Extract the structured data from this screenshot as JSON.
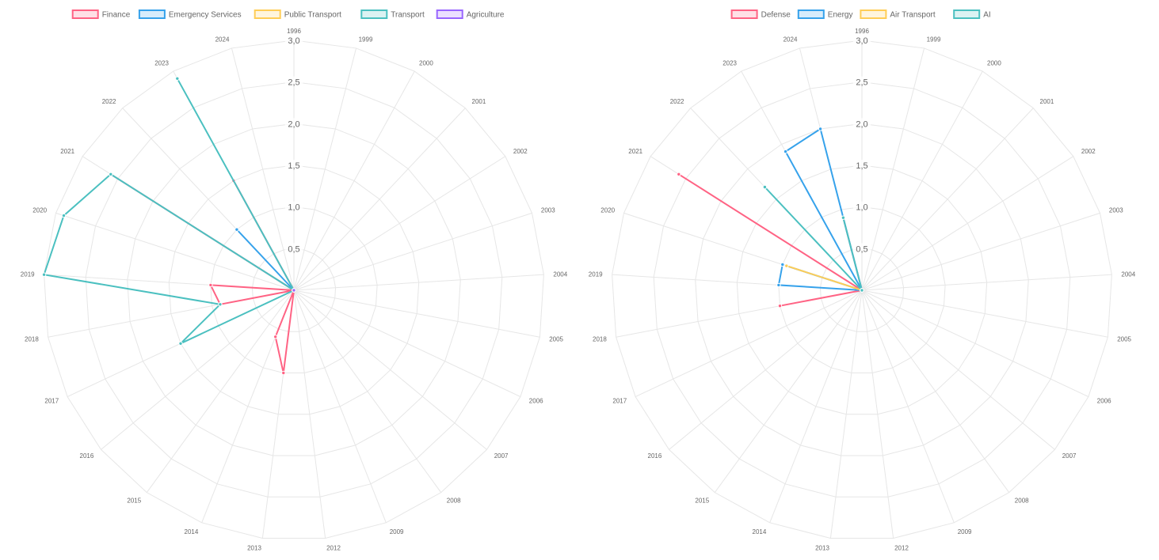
{
  "chart_data": [
    {
      "type": "radar",
      "categories": [
        "1996",
        "1999",
        "2000",
        "2001",
        "2002",
        "2003",
        "2004",
        "2005",
        "2006",
        "2007",
        "2008",
        "2009",
        "2012",
        "2013",
        "2014",
        "2015",
        "2016",
        "2017",
        "2018",
        "2019",
        "2020",
        "2021",
        "2022",
        "2023",
        "2024"
      ],
      "r_ticks": [
        "0,5",
        "1,0",
        "1,5",
        "2,0",
        "2,5",
        "3,0"
      ],
      "r_tick_values": [
        0.5,
        1.0,
        1.5,
        2.0,
        2.5,
        3.0
      ],
      "rlim": [
        0,
        3.0
      ],
      "legend_position": "top",
      "grid": true,
      "series": [
        {
          "name": "Finance",
          "color": "#ff6384",
          "fill": "rgba(255,99,132,0.2)",
          "values": [
            0,
            0,
            0,
            0,
            0,
            0,
            0,
            0,
            0,
            0,
            0,
            0,
            0,
            1.0,
            0.6,
            0,
            0,
            0,
            0.9,
            1.0,
            0,
            2.6,
            0,
            1.5,
            0
          ]
        },
        {
          "name": "Emergency Services",
          "color": "#36a2eb",
          "fill": "rgba(54,162,235,0.2)",
          "values": [
            0,
            0,
            0,
            0,
            0,
            0,
            0,
            0,
            0,
            0,
            0,
            0,
            0,
            0,
            0,
            0,
            0,
            0,
            0,
            0,
            0,
            0,
            1.0,
            0,
            0
          ]
        },
        {
          "name": "Public Transport",
          "color": "#ffcd56",
          "fill": "rgba(255,205,86,0.2)",
          "values": [
            0,
            0,
            0,
            0,
            0,
            0,
            0,
            0,
            0,
            0,
            0,
            0,
            0,
            0,
            0,
            0,
            0,
            0,
            0,
            0,
            0,
            0,
            0,
            0,
            0
          ]
        },
        {
          "name": "Transport",
          "color": "#4bc0c0",
          "fill": "rgba(75,192,192,0.2)",
          "values": [
            0,
            0,
            0,
            0,
            0,
            0,
            0,
            0,
            0,
            0,
            0,
            0,
            0,
            0,
            0,
            0,
            0,
            1.5,
            0.9,
            3.0,
            2.9,
            2.6,
            0,
            2.9,
            0
          ]
        },
        {
          "name": "Agriculture",
          "color": "#9966ff",
          "fill": "rgba(153,102,255,0.2)",
          "values": [
            0,
            0,
            0,
            0,
            0,
            0,
            0,
            0,
            0,
            0,
            0,
            0,
            0,
            0,
            0,
            0,
            0,
            0,
            0,
            0,
            0,
            0,
            0,
            0,
            0
          ]
        }
      ]
    },
    {
      "type": "radar",
      "categories": [
        "1996",
        "1999",
        "2000",
        "2001",
        "2002",
        "2003",
        "2004",
        "2005",
        "2006",
        "2007",
        "2008",
        "2009",
        "2012",
        "2013",
        "2014",
        "2015",
        "2016",
        "2017",
        "2018",
        "2019",
        "2020",
        "2021",
        "2022",
        "2023",
        "2024"
      ],
      "r_ticks": [
        "0,5",
        "1,0",
        "1,5",
        "2,0",
        "2,5",
        "3,0"
      ],
      "r_tick_values": [
        0.5,
        1.0,
        1.5,
        2.0,
        2.5,
        3.0
      ],
      "rlim": [
        0,
        3.0
      ],
      "legend_position": "top",
      "grid": true,
      "series": [
        {
          "name": "Defense",
          "color": "#ff6384",
          "fill": "rgba(255,99,132,0.2)",
          "values": [
            0,
            0,
            0,
            0,
            0,
            0,
            0,
            0,
            0,
            0,
            0,
            0,
            0,
            0,
            0,
            0,
            0,
            0,
            1.0,
            0,
            0,
            2.6,
            0,
            0,
            0.9
          ]
        },
        {
          "name": "Energy",
          "color": "#36a2eb",
          "fill": "rgba(54,162,235,0.2)",
          "values": [
            0,
            0,
            0,
            0,
            0,
            0,
            0,
            0,
            0,
            0,
            0,
            0,
            0,
            0,
            0,
            0,
            0,
            0,
            0,
            1.0,
            1.0,
            0,
            0,
            1.9,
            2.0
          ]
        },
        {
          "name": "Air Transport",
          "color": "#ffcd56",
          "fill": "rgba(255,205,86,0.2)",
          "values": [
            0,
            0,
            0,
            0,
            0,
            0,
            0,
            0,
            0,
            0,
            0,
            0,
            0,
            0,
            0,
            0,
            0,
            0,
            0,
            0,
            0.95,
            0,
            0,
            0,
            0
          ]
        },
        {
          "name": "AI",
          "color": "#4bc0c0",
          "fill": "rgba(75,192,192,0.2)",
          "values": [
            0,
            0,
            0,
            0,
            0,
            0,
            0,
            0,
            0,
            0,
            0,
            0,
            0,
            0,
            0,
            0,
            0,
            0,
            0,
            0,
            0,
            0,
            1.7,
            0,
            0.9
          ]
        }
      ]
    }
  ]
}
